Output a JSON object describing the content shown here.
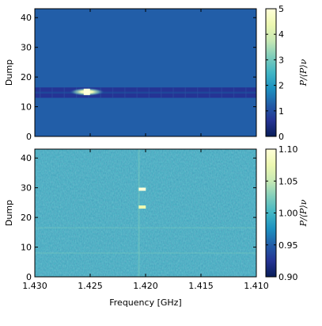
{
  "chart_data": [
    {
      "type": "heatmap",
      "panel": "top",
      "ylabel": "Dump",
      "xlim": [
        1.43,
        1.41
      ],
      "ylim": [
        0,
        43
      ],
      "yticks": [
        "0",
        "10",
        "20",
        "30",
        "40"
      ],
      "colorbar": {
        "label": "P/⟨P⟩ν",
        "range": [
          0,
          5
        ],
        "ticks": [
          "0",
          "1",
          "2",
          "3",
          "4",
          "5"
        ]
      },
      "features": [
        {
          "kind": "horizontal_band",
          "dump_range": [
            13,
            16.5
          ],
          "value": 0.3
        },
        {
          "kind": "hotspot",
          "frequency": 1.4253,
          "dump": 15,
          "value": 5
        }
      ],
      "background_value": 1.0
    },
    {
      "type": "heatmap",
      "panel": "bottom",
      "xlabel": "Frequency [GHz]",
      "ylabel": "Dump",
      "xlim": [
        1.43,
        1.41
      ],
      "ylim": [
        0,
        43
      ],
      "xticks": [
        {
          "value": 1.43,
          "label": "1.430"
        },
        {
          "value": 1.425,
          "label": "1.425"
        },
        {
          "value": 1.42,
          "label": "1.420"
        },
        {
          "value": 1.415,
          "label": "1.415"
        },
        {
          "value": 1.41,
          "label": "1.410"
        }
      ],
      "yticks": [
        "0",
        "10",
        "20",
        "30",
        "40"
      ],
      "colorbar": {
        "label": "P/⟨P⟩ν",
        "range": [
          0.9,
          1.1
        ],
        "ticks": [
          "0.90",
          "0.95",
          "1.00",
          "1.05",
          "1.10"
        ]
      },
      "features": [
        {
          "kind": "hotspot",
          "frequency": 1.4203,
          "dump": 29.5,
          "value": 1.1
        },
        {
          "kind": "hotspot",
          "frequency": 1.4203,
          "dump": 23.5,
          "value": 1.08
        },
        {
          "kind": "vertical_streak",
          "frequency": 1.4206,
          "value": 1.02
        }
      ],
      "background_value": 1.0
    }
  ]
}
